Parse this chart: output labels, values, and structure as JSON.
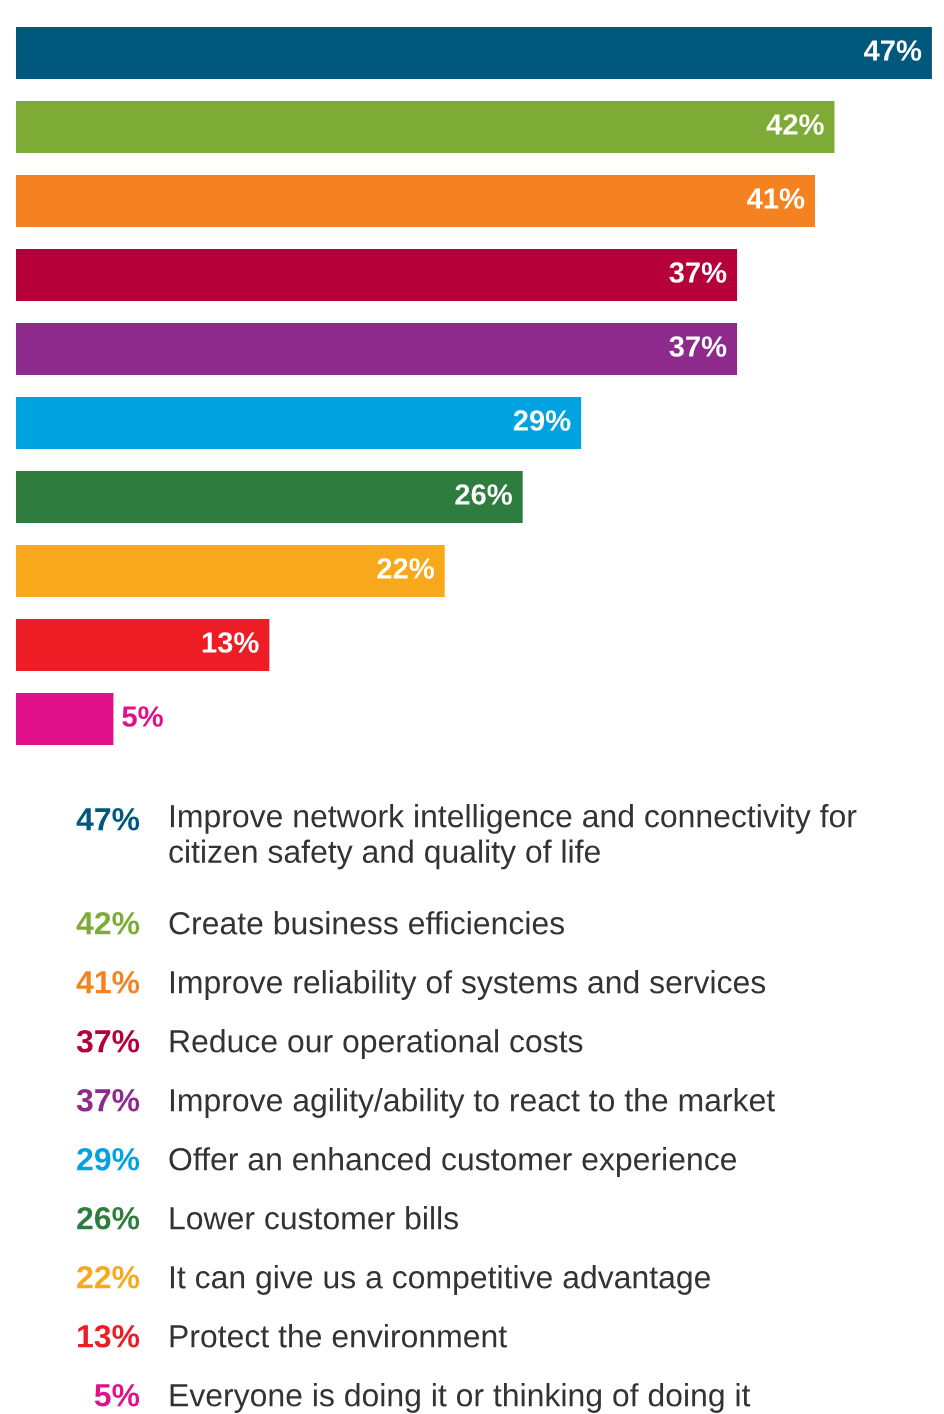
{
  "chart_data": {
    "type": "bar",
    "orientation": "horizontal",
    "categories": [
      null,
      null,
      null,
      null,
      null,
      null,
      null,
      null,
      null,
      null
    ],
    "values": [
      47,
      42,
      41,
      37,
      37,
      29,
      26,
      22,
      13,
      5
    ],
    "value_labels": [
      "47%",
      "42%",
      "41%",
      "37%",
      "37%",
      "29%",
      "26%",
      "22%",
      "13%",
      "5%"
    ],
    "colors": [
      "#00587c",
      "#7dab35",
      "#f58220",
      "#b5003c",
      "#8e2a8b",
      "#00a3e0",
      "#2e7d3e",
      "#f7a81b",
      "#ee1c25",
      "#e0118a"
    ],
    "annotations": [
      "Improve network intelligence and connectivity for citizen safety and quality of life",
      "Create business efficiencies",
      "Improve reliability of systems and services",
      "Reduce our operational costs",
      "Improve agility/ability to react to the market",
      "Offer an enhanced customer experience",
      "Lower customer bills",
      "It can give us a competitive advantage",
      "Protect the environment",
      "Everyone is doing it or thinking of doing it"
    ],
    "data_labels": true
  }
}
